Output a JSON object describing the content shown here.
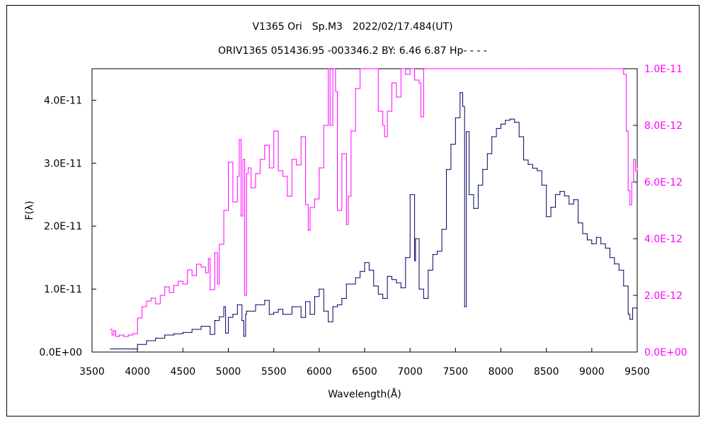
{
  "chart_data": {
    "type": "line",
    "title": "V1365 Ori　Sp.M3　2022/02/17.484(UT)",
    "subtitle": "ORIV1365 051436.95 -003346.2 BY: 6.46 6.87 Hp- - - -",
    "xlabel": "Wavelength(Å)",
    "ylabel": "F(λ)",
    "xlim": [
      3500,
      9500
    ],
    "ylim_left": [
      0,
      4.5e-11
    ],
    "ylim_right": [
      0,
      1e-11
    ],
    "x_ticks": [
      "3500",
      "4000",
      "4500",
      "5000",
      "5500",
      "6000",
      "6500",
      "7000",
      "7500",
      "8000",
      "8500",
      "9000",
      "9500"
    ],
    "y_ticks_left": [
      "0.0E+00",
      "1.0E-11",
      "2.0E-11",
      "3.0E-11",
      "4.0E-11"
    ],
    "y_ticks_right": [
      "0.0E+00",
      "2.0E-12",
      "4.0E-12",
      "6.0E-12",
      "8.0E-12",
      "1.0E-11"
    ],
    "colors": {
      "series_main": "#000066",
      "series_zoom": "#ff00ff",
      "right_axis": "#ff00ff"
    },
    "series": [
      {
        "axis": "left",
        "x": [
          3700,
          3800,
          3900,
          3950,
          4000,
          4100,
          4200,
          4300,
          4400,
          4500,
          4600,
          4700,
          4800,
          4850,
          4900,
          4950,
          4970,
          5000,
          5050,
          5100,
          5150,
          5170,
          5190,
          5200,
          5300,
          5400,
          5450,
          5500,
          5550,
          5600,
          5700,
          5800,
          5850,
          5900,
          5950,
          6000,
          6050,
          6100,
          6150,
          6200,
          6250,
          6300,
          6400,
          6450,
          6500,
          6550,
          6600,
          6650,
          6700,
          6750,
          6800,
          6850,
          6900,
          6950,
          7000,
          7050,
          7060,
          7100,
          7150,
          7200,
          7250,
          7300,
          7350,
          7400,
          7450,
          7500,
          7550,
          7580,
          7600,
          7620,
          7650,
          7700,
          7750,
          7800,
          7850,
          7900,
          7950,
          8000,
          8050,
          8100,
          8150,
          8200,
          8250,
          8300,
          8350,
          8400,
          8450,
          8500,
          8550,
          8600,
          8650,
          8700,
          8750,
          8800,
          8850,
          8900,
          8950,
          9000,
          9050,
          9100,
          9150,
          9200,
          9250,
          9300,
          9350,
          9400,
          9420,
          9450,
          9500
        ],
        "y": [
          5e-13,
          5e-13,
          5e-13,
          5e-13,
          1.2e-12,
          1.8e-12,
          2.2e-12,
          2.7e-12,
          2.9e-12,
          3.1e-12,
          3.6e-12,
          4.1e-12,
          2.8e-12,
          5e-12,
          5.6e-12,
          7.2e-12,
          3e-12,
          5.5e-12,
          6e-12,
          7.5e-12,
          5e-12,
          2.5e-12,
          6e-12,
          6.5e-12,
          7.5e-12,
          8.2e-12,
          6e-12,
          6.3e-12,
          6.8e-12,
          6e-12,
          7.2e-12,
          5.5e-12,
          8e-12,
          6e-12,
          8.8e-12,
          1e-11,
          6.5e-12,
          4.8e-12,
          7.2e-12,
          7.5e-12,
          8.5e-12,
          1.08e-11,
          1.18e-11,
          1.28e-11,
          1.42e-11,
          1.3e-11,
          1.05e-11,
          9.2e-12,
          8.5e-12,
          1.2e-11,
          1.15e-11,
          1.1e-11,
          1.02e-11,
          1.5e-11,
          2.5e-11,
          1.45e-11,
          1.8e-11,
          1e-11,
          8.5e-12,
          1.3e-11,
          1.55e-11,
          1.6e-11,
          1.95e-11,
          2.9e-11,
          3.3e-11,
          3.72e-11,
          4.12e-11,
          3.9e-11,
          7.2e-12,
          3.5e-11,
          2.5e-11,
          2.28e-11,
          2.65e-11,
          2.9e-11,
          3.15e-11,
          3.42e-11,
          3.55e-11,
          3.62e-11,
          3.68e-11,
          3.7e-11,
          3.65e-11,
          3.42e-11,
          3.05e-11,
          2.98e-11,
          2.92e-11,
          2.88e-11,
          2.65e-11,
          2.15e-11,
          2.3e-11,
          2.5e-11,
          2.55e-11,
          2.48e-11,
          2.35e-11,
          2.42e-11,
          2.05e-11,
          1.88e-11,
          1.78e-11,
          1.72e-11,
          1.82e-11,
          1.72e-11,
          1.65e-11,
          1.5e-11,
          1.4e-11,
          1.3e-11,
          1.05e-11,
          6e-12,
          5.2e-12,
          7e-12,
          6.8e-12
        ]
      },
      {
        "axis": "right",
        "x": [
          3700,
          3720,
          3740,
          3760,
          3800,
          3850,
          3900,
          3950,
          4000,
          4050,
          4100,
          4150,
          4200,
          4250,
          4300,
          4350,
          4400,
          4450,
          4500,
          4550,
          4600,
          4650,
          4700,
          4750,
          4780,
          4800,
          4850,
          4880,
          4900,
          4950,
          5000,
          5050,
          5100,
          5120,
          5140,
          5160,
          5180,
          5200,
          5220,
          5250,
          5300,
          5350,
          5400,
          5450,
          5500,
          5550,
          5600,
          5650,
          5700,
          5750,
          5800,
          5850,
          5880,
          5900,
          5950,
          6000,
          6050,
          6100,
          6120,
          6150,
          6180,
          6200,
          6250,
          6300,
          6320,
          6350,
          6400,
          6450,
          6500,
          6600,
          6650,
          6700,
          6720,
          6750,
          6800,
          6850,
          6900,
          6950,
          7000,
          7050,
          7100,
          7120,
          7150,
          7200,
          7250,
          7300,
          7350,
          7400,
          7450,
          7500,
          7550,
          7580,
          7600,
          7620,
          7700,
          7800,
          7900,
          8000,
          8100,
          8200,
          8300,
          8400,
          8500,
          8600,
          8700,
          8800,
          8900,
          9000,
          9100,
          9200,
          9300,
          9350,
          9380,
          9400,
          9420,
          9440,
          9460,
          9480,
          9500
        ],
        "y": [
          8e-13,
          6e-13,
          7.5e-13,
          5.5e-13,
          6e-13,
          5.5e-13,
          6e-13,
          6.5e-13,
          1.2e-12,
          1.6e-12,
          1.8e-12,
          1.9e-12,
          1.7e-12,
          2e-12,
          2.3e-12,
          2.1e-12,
          2.35e-12,
          2.5e-12,
          2.4e-12,
          2.9e-12,
          2.7e-12,
          3.1e-12,
          3e-12,
          2.8e-12,
          3.3e-12,
          2.2e-12,
          3.5e-12,
          2.4e-12,
          3.8e-12,
          5e-12,
          6.7e-12,
          5.3e-12,
          6.2e-12,
          7.5e-12,
          4.8e-12,
          6.8e-12,
          2e-12,
          6.3e-12,
          6.5e-12,
          5.8e-12,
          6.3e-12,
          6.8e-12,
          7.3e-12,
          6.5e-12,
          7.8e-12,
          6.4e-12,
          6.2e-12,
          5.5e-12,
          6.8e-12,
          6.6e-12,
          7.6e-12,
          5.2e-12,
          4.3e-12,
          5.1e-12,
          5.4e-12,
          6.5e-12,
          8e-12,
          1e-11,
          8e-12,
          1e-11,
          9.2e-12,
          5e-12,
          7e-12,
          4.5e-12,
          5.5e-12,
          7.8e-12,
          9.3e-12,
          1e-11,
          1e-11,
          1e-11,
          8.5e-12,
          8e-12,
          7.6e-12,
          8.5e-12,
          9.5e-12,
          9e-12,
          1e-11,
          9.8e-12,
          1e-11,
          9.6e-12,
          9.5e-12,
          8.3e-12,
          1e-11,
          1e-11,
          1e-11,
          1e-11,
          1e-11,
          1e-11,
          1e-11,
          1e-11,
          1e-11,
          1e-11,
          1e-11,
          1e-11,
          1e-11,
          1e-11,
          1e-11,
          1e-11,
          1e-11,
          1e-11,
          1e-11,
          1e-11,
          1e-11,
          1e-11,
          1e-11,
          1e-11,
          1e-11,
          1e-11,
          1e-11,
          1e-11,
          1e-11,
          9.8e-12,
          7.8e-12,
          5.7e-12,
          5.2e-12,
          6e-12,
          6.8e-12,
          6.4e-12,
          6.5e-12
        ]
      }
    ]
  }
}
